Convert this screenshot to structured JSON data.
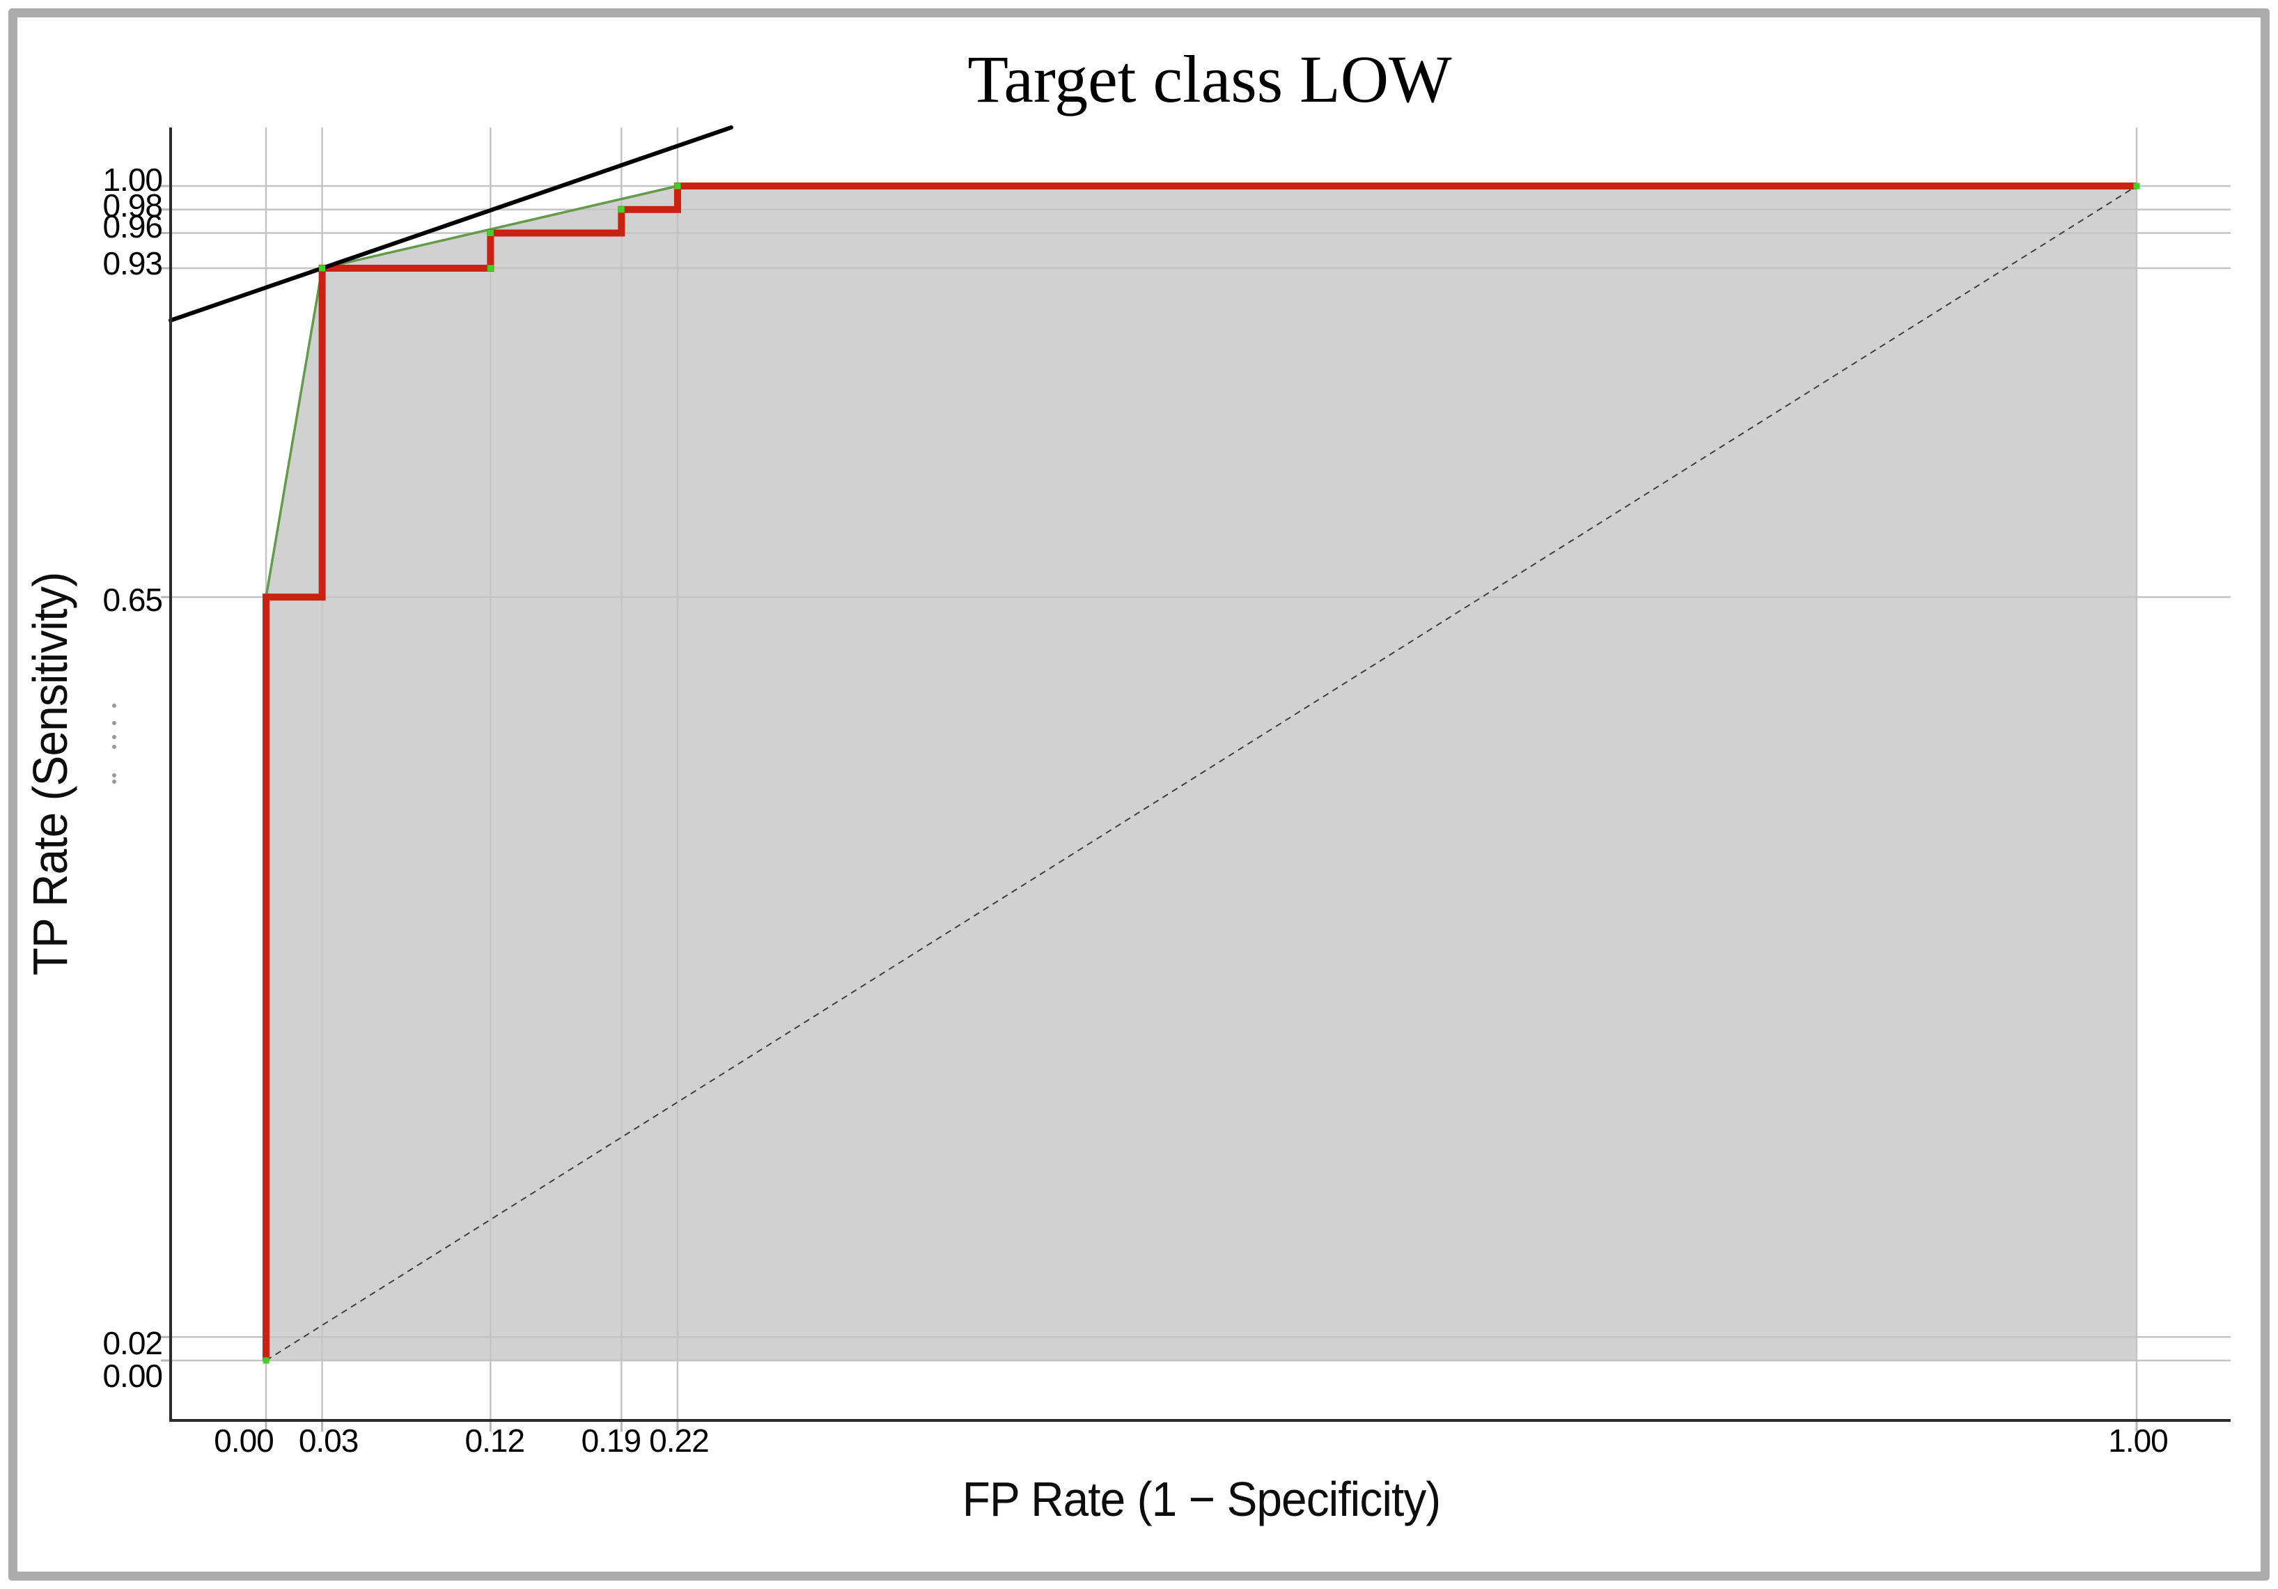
{
  "chart_data": {
    "type": "line",
    "subtype": "roc-curve-with-convex-hull",
    "title": "Target class LOW",
    "xlabel": "FP Rate (1 − Specificity)",
    "ylabel": "TP Rate (Sensitivity)",
    "xlim": [
      0,
      1
    ],
    "ylim": [
      0,
      1
    ],
    "grid": true,
    "legend": null,
    "x_ticks": [
      0.0,
      0.03,
      0.12,
      0.19,
      0.22,
      1.0
    ],
    "x_tick_labels": [
      "0.00",
      "0.03",
      "0.12",
      "0.19",
      "0.22",
      "1.00"
    ],
    "y_ticks": [
      0.0,
      0.02,
      0.65,
      0.93,
      0.96,
      0.98,
      1.0
    ],
    "y_tick_labels": [
      "0.00",
      "0.02",
      "0.65",
      "0.93",
      "0.96",
      "0.98",
      "1.00"
    ],
    "series": [
      {
        "name": "roc-step-curve",
        "color": "#c92213",
        "points": [
          [
            0,
            0
          ],
          [
            0,
            0.65
          ],
          [
            0.03,
            0.65
          ],
          [
            0.03,
            0.93
          ],
          [
            0.12,
            0.93
          ],
          [
            0.12,
            0.96
          ],
          [
            0.19,
            0.96
          ],
          [
            0.19,
            0.98
          ],
          [
            0.22,
            0.98
          ],
          [
            0.22,
            1.0
          ],
          [
            1.0,
            1.0
          ]
        ]
      },
      {
        "name": "convex-hull",
        "color": "#639b4a",
        "points": [
          [
            0,
            0
          ],
          [
            0,
            0.65
          ],
          [
            0.03,
            0.93
          ],
          [
            0.22,
            1.0
          ],
          [
            1.0,
            1.0
          ]
        ]
      },
      {
        "name": "chance-diagonal",
        "color": "#3f3f3f",
        "style": "dashed",
        "points": [
          [
            0,
            0
          ],
          [
            1.0,
            1.0
          ]
        ]
      }
    ],
    "tangent_line": {
      "point": [
        0.03,
        0.93
      ],
      "slope": 0.548,
      "color": "#000000"
    },
    "marker_points": [
      [
        0,
        0
      ],
      [
        0.03,
        0.93
      ],
      [
        0.12,
        0.93
      ],
      [
        0.12,
        0.96
      ],
      [
        0.19,
        0.98
      ],
      [
        0.22,
        1.0
      ],
      [
        1.0,
        1.0
      ]
    ],
    "fill_under_hull": true,
    "y_axis_collapsed_ticks_indicator": true,
    "colors": {
      "roc": "#c92213",
      "hull": "#639b4a",
      "marker": "#43d128",
      "area_fill": "#d1d1d1",
      "gridline": "#c4c4c4",
      "axis_line": "#2b2b2b",
      "tick_mark": "#b5b5b5",
      "diagonal": "#3f3f3f",
      "tangent": "#000000",
      "window_frame": "#acacac"
    }
  }
}
